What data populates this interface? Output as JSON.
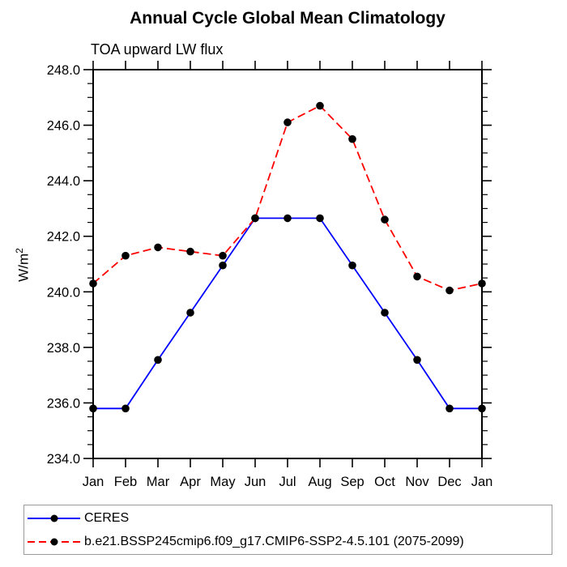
{
  "figure": {
    "background": "#ffffff",
    "axis_color": "#000000",
    "legend_border_color": "#9a9a9a"
  },
  "chart_data": {
    "type": "line",
    "title": "Annual Cycle Global Mean Climatology",
    "subtitle": "TOA upward LW flux",
    "ylabel_base": "W/m",
    "ylabel_sup": "2",
    "x": [
      "Jan",
      "Feb",
      "Mar",
      "Apr",
      "May",
      "Jun",
      "Jul",
      "Aug",
      "Sep",
      "Oct",
      "Nov",
      "Dec",
      "Jan"
    ],
    "ylim": [
      234.0,
      248.0
    ],
    "ytick_major": 2.0,
    "ytick_minor": 0.5,
    "ytick_labels": [
      "234.0",
      "236.0",
      "238.0",
      "240.0",
      "242.0",
      "244.0",
      "246.0",
      "248.0"
    ],
    "grid": false,
    "legend_position": "bottom-left",
    "marker": {
      "shape": "circle",
      "color": "#000000",
      "radius": 4.8
    },
    "series": [
      {
        "name": "CERES",
        "color": "#0000ff",
        "line_style": "solid",
        "dash": "",
        "values": [
          235.8,
          235.8,
          237.55,
          239.25,
          240.95,
          242.65,
          242.65,
          242.65,
          240.95,
          239.25,
          237.55,
          235.8,
          235.8
        ]
      },
      {
        "name": "b.e21.BSSP245cmip6.f09_g17.CMIP6-SSP2-4.5.101 (2075-2099)",
        "color": "#ff0000",
        "line_style": "dashed",
        "dash": "10 5",
        "values": [
          240.3,
          241.3,
          241.6,
          241.45,
          241.3,
          242.65,
          246.1,
          246.7,
          245.5,
          242.6,
          240.55,
          240.05,
          240.3
        ]
      }
    ]
  }
}
